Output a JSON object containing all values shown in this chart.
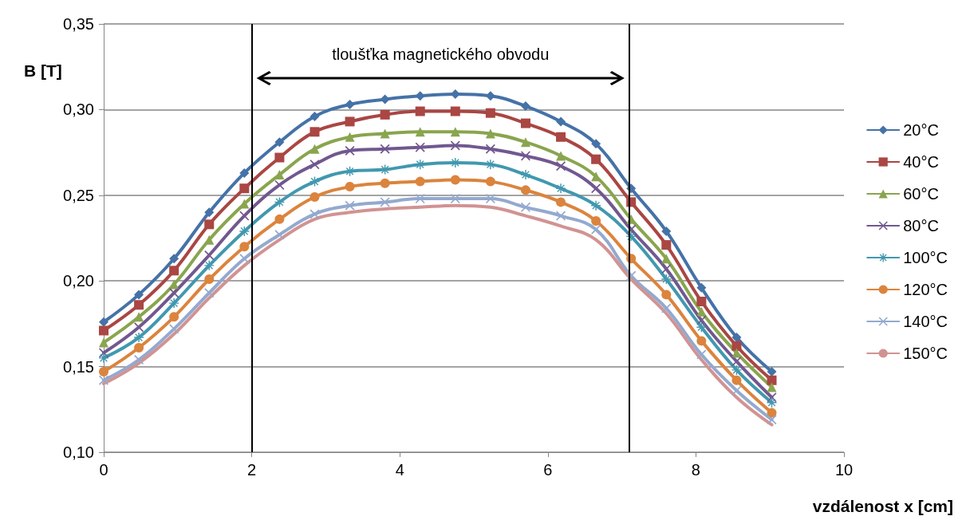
{
  "chart_data": {
    "type": "line",
    "xlabel": "vzdálenost x [cm]",
    "ylabel": "B [T]",
    "x": [
      0,
      0.475,
      0.95,
      1.425,
      1.9,
      2.375,
      2.85,
      3.325,
      3.8,
      4.275,
      4.75,
      5.225,
      5.7,
      6.175,
      6.65,
      7.125,
      7.6,
      8.075,
      8.55,
      9.025
    ],
    "series": [
      {
        "name": "20°C",
        "color": "#4572a7",
        "marker": "diamond",
        "values": [
          0.176,
          0.192,
          0.213,
          0.24,
          0.263,
          0.281,
          0.296,
          0.303,
          0.306,
          0.308,
          0.309,
          0.308,
          0.302,
          0.293,
          0.28,
          0.254,
          0.229,
          0.196,
          0.167,
          0.147
        ]
      },
      {
        "name": "40°C",
        "color": "#aa4643",
        "marker": "square",
        "values": [
          0.171,
          0.186,
          0.206,
          0.233,
          0.254,
          0.272,
          0.287,
          0.293,
          0.297,
          0.299,
          0.299,
          0.298,
          0.292,
          0.284,
          0.271,
          0.246,
          0.221,
          0.188,
          0.162,
          0.142
        ]
      },
      {
        "name": "60°C",
        "color": "#89a54e",
        "marker": "triangle",
        "values": [
          0.164,
          0.179,
          0.198,
          0.224,
          0.245,
          0.262,
          0.277,
          0.284,
          0.286,
          0.287,
          0.287,
          0.286,
          0.281,
          0.273,
          0.261,
          0.236,
          0.213,
          0.182,
          0.158,
          0.138
        ]
      },
      {
        "name": "80°C",
        "color": "#71588f",
        "marker": "cross",
        "values": [
          0.158,
          0.173,
          0.193,
          0.215,
          0.238,
          0.256,
          0.268,
          0.276,
          0.277,
          0.278,
          0.279,
          0.277,
          0.273,
          0.267,
          0.254,
          0.23,
          0.207,
          0.177,
          0.153,
          0.132
        ]
      },
      {
        "name": "100°C",
        "color": "#4198af",
        "marker": "star",
        "values": [
          0.155,
          0.167,
          0.187,
          0.209,
          0.229,
          0.246,
          0.258,
          0.264,
          0.265,
          0.268,
          0.269,
          0.268,
          0.262,
          0.254,
          0.244,
          0.226,
          0.201,
          0.173,
          0.148,
          0.129
        ]
      },
      {
        "name": "120°C",
        "color": "#db843d",
        "marker": "circle",
        "values": [
          0.147,
          0.161,
          0.179,
          0.201,
          0.22,
          0.236,
          0.249,
          0.255,
          0.257,
          0.258,
          0.259,
          0.258,
          0.253,
          0.246,
          0.235,
          0.213,
          0.192,
          0.165,
          0.142,
          0.123
        ]
      },
      {
        "name": "140°C",
        "color": "#93a9cf",
        "marker": "cross",
        "values": [
          0.142,
          0.154,
          0.172,
          0.193,
          0.213,
          0.227,
          0.239,
          0.244,
          0.246,
          0.248,
          0.248,
          0.248,
          0.243,
          0.238,
          0.23,
          0.203,
          0.184,
          0.157,
          0.136,
          0.119
        ]
      },
      {
        "name": "150°C",
        "color": "#d19392",
        "marker": "none",
        "values": [
          0.14,
          0.152,
          0.169,
          0.19,
          0.209,
          0.224,
          0.236,
          0.24,
          0.242,
          0.243,
          0.244,
          0.243,
          0.238,
          0.232,
          0.224,
          0.201,
          0.181,
          0.154,
          0.132,
          0.116
        ]
      }
    ],
    "xlim": [
      0,
      10
    ],
    "xticks": [
      0,
      2,
      4,
      6,
      8,
      10
    ],
    "ylim": [
      0.1,
      0.35
    ],
    "yticks": [
      {
        "value": 0.1,
        "label": "0,10"
      },
      {
        "value": 0.15,
        "label": "0,15"
      },
      {
        "value": 0.2,
        "label": "0,20"
      },
      {
        "value": 0.25,
        "label": "0,25"
      },
      {
        "value": 0.3,
        "label": "0,30"
      },
      {
        "value": 0.35,
        "label": "0,35"
      }
    ],
    "ref_lines": [
      {
        "axis": "x",
        "value": 2,
        "color": "#000000"
      },
      {
        "axis": "x",
        "value": 7.1,
        "color": "#000000"
      }
    ],
    "annotations": [
      "tloušťka magnetického obvodu"
    ],
    "grid": "y",
    "legend": "right",
    "line_style": "solid"
  }
}
